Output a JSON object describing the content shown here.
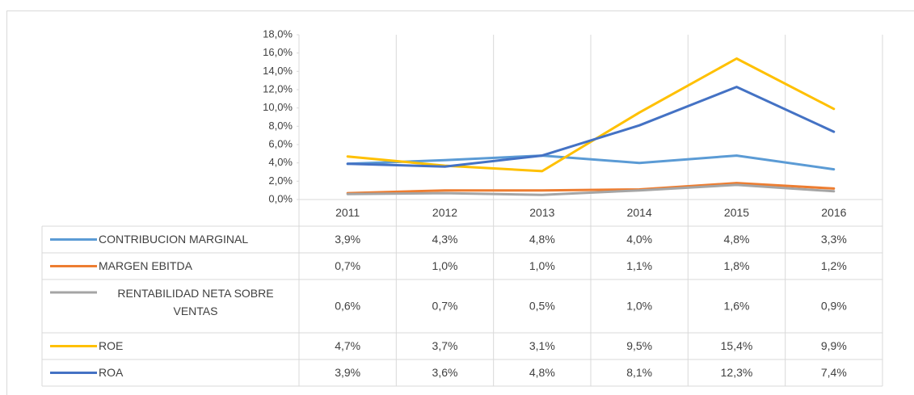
{
  "chart_data": {
    "type": "line",
    "categories": [
      "2011",
      "2012",
      "2013",
      "2014",
      "2015",
      "2016"
    ],
    "series": [
      {
        "name": "CONTRIBUCION MARGINAL",
        "color": "#5b9bd5",
        "values": [
          3.9,
          4.3,
          4.8,
          4.0,
          4.8,
          3.3
        ],
        "value_labels": [
          "3,9%",
          "4,3%",
          "4,8%",
          "4,0%",
          "4,8%",
          "3,3%"
        ]
      },
      {
        "name": "MARGEN EBITDA",
        "color": "#ed7d31",
        "values": [
          0.7,
          1.0,
          1.0,
          1.1,
          1.8,
          1.2
        ],
        "value_labels": [
          "0,7%",
          "1,0%",
          "1,0%",
          "1,1%",
          "1,8%",
          "1,2%"
        ]
      },
      {
        "name": "RENTABILIDAD NETA SOBRE VENTAS",
        "color": "#a5a5a5",
        "values": [
          0.6,
          0.7,
          0.5,
          1.0,
          1.6,
          0.9
        ],
        "value_labels": [
          "0,6%",
          "0,7%",
          "0,5%",
          "1,0%",
          "1,6%",
          "0,9%"
        ]
      },
      {
        "name": "ROE",
        "color": "#ffc000",
        "values": [
          4.7,
          3.7,
          3.1,
          9.5,
          15.4,
          9.9
        ],
        "value_labels": [
          "4,7%",
          "3,7%",
          "3,1%",
          "9,5%",
          "15,4%",
          "9,9%"
        ]
      },
      {
        "name": "ROA",
        "color": "#4472c4",
        "values": [
          3.9,
          3.6,
          4.8,
          8.1,
          12.3,
          7.4
        ],
        "value_labels": [
          "3,9%",
          "3,6%",
          "4,8%",
          "8,1%",
          "12,3%",
          "7,4%"
        ]
      }
    ],
    "ylim": [
      0,
      18
    ],
    "yticks": [
      {
        "value": 0,
        "label": "0,0%"
      },
      {
        "value": 2,
        "label": "2,0%"
      },
      {
        "value": 4,
        "label": "4,0%"
      },
      {
        "value": 6,
        "label": "6,0%"
      },
      {
        "value": 8,
        "label": "8,0%"
      },
      {
        "value": 10,
        "label": "10,0%"
      },
      {
        "value": 12,
        "label": "12,0%"
      },
      {
        "value": 14,
        "label": "14,0%"
      },
      {
        "value": 16,
        "label": "16,0%"
      },
      {
        "value": 18,
        "label": "18,0%"
      }
    ]
  }
}
